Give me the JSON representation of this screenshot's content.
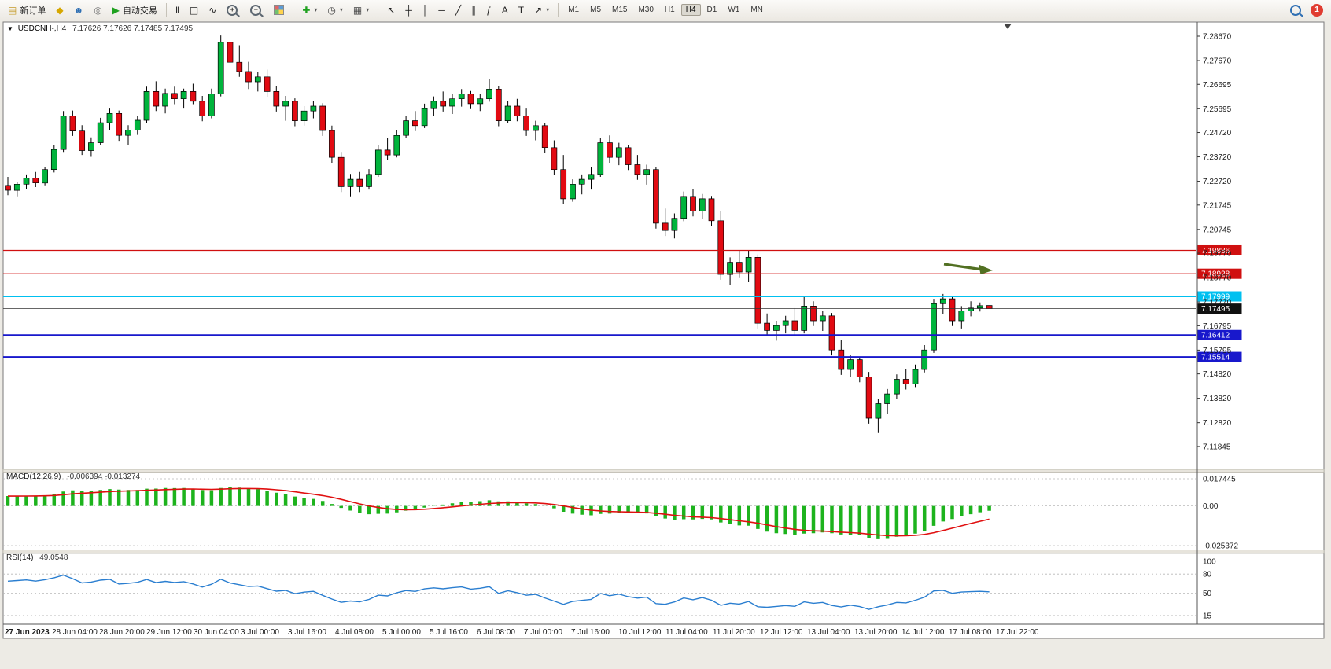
{
  "toolbar": {
    "new_order_label": "新订单",
    "autotrade_label": "自动交易",
    "timeframes": [
      "M1",
      "M5",
      "M15",
      "M30",
      "H1",
      "H4",
      "D1",
      "W1",
      "MN"
    ],
    "active_timeframe": "H4",
    "notification_badge": "1",
    "icons": {
      "title_marker": "▼",
      "new_order": "▤",
      "metaeditor": "◆",
      "profile": "☻",
      "support": "◎",
      "autotrade_play": "▶",
      "bar_chart": "‖",
      "candlestick_chart": "◫",
      "line_chart": "∿",
      "zoom_in_sign": "+",
      "zoom_out_sign": "−",
      "indicators": "✚",
      "periods": "◷",
      "templates": "▦",
      "cursor": "↖",
      "crosshair": "┼",
      "vertical_line": "│",
      "horizontal_line": "─",
      "trendline": "╱",
      "channel": "∥",
      "fibonacci": "ƒ",
      "text": "A",
      "text_label": "T",
      "arrows": "↗",
      "dropdown": "▾"
    }
  },
  "chart": {
    "symbol_title": "USDCNH-,H4",
    "ohlc_quote": "7.17626 7.17626 7.17485 7.17495",
    "hlines": [
      {
        "label": "7.19886",
        "price": 7.19886,
        "color": "#d01010",
        "width": 1.2
      },
      {
        "label": "7.18928",
        "price": 7.18928,
        "color": "#d01010",
        "width": 1.2
      },
      {
        "label": "7.17999",
        "price": 7.17999,
        "color": "#00c0f0",
        "width": 2
      },
      {
        "label": "7.16412",
        "price": 7.16412,
        "color": "#1818cc",
        "width": 2
      },
      {
        "label": "7.15514",
        "price": 7.15514,
        "color": "#1818cc",
        "width": 2
      }
    ],
    "current_price": {
      "label": "7.17495",
      "price": 7.17495,
      "color": "#101010"
    },
    "trend_arrow": {
      "color": "#527022"
    }
  },
  "indicators": {
    "macd": {
      "title": "MACD(12,26,9)",
      "values_text": "-0.006394 -0.013274",
      "fast": 12,
      "slow": 26,
      "signal": 9,
      "axis_labels": [
        "0.017445",
        "0.00",
        "-0.025372"
      ],
      "axis_values": [
        0.017445,
        0,
        -0.025372
      ],
      "histogram_color": "#1db31d",
      "signal_color": "#e01010"
    },
    "rsi": {
      "title": "RSI(14)",
      "value_text": "49.0548",
      "period": 14,
      "axis_labels": [
        "100",
        "80",
        "50",
        "15"
      ],
      "axis_values": [
        100,
        80,
        50,
        15
      ],
      "line_color": "#2a7ed0"
    }
  },
  "chart_data": {
    "type": "candlestick",
    "symbol": "USDCNH-",
    "timeframe": "H4",
    "price_range": [
      7.11845,
      7.2867
    ],
    "up_color": "#00b43c",
    "down_color": "#e20a12",
    "price_axis_ticks": [
      "7.28670",
      "7.27670",
      "7.26695",
      "7.25695",
      "7.24720",
      "7.23720",
      "7.22720",
      "7.21745",
      "7.20745",
      "7.19770",
      "7.18770",
      "7.17770",
      "7.16795",
      "7.15795",
      "7.14820",
      "7.13820",
      "7.12820",
      "7.11845"
    ],
    "time_axis_labels": [
      "27 Jun 2023",
      "28 Jun 04:00",
      "28 Jun 20:00",
      "29 Jun 12:00",
      "30 Jun 04:00",
      "3 Jul 00:00",
      "3 Jul 16:00",
      "4 Jul 08:00",
      "5 Jul 00:00",
      "5 Jul 16:00",
      "6 Jul 08:00",
      "7 Jul 00:00",
      "7 Jul 16:00",
      "10 Jul 12:00",
      "11 Jul 04:00",
      "11 Jul 20:00",
      "12 Jul 12:00",
      "13 Jul 04:00",
      "13 Jul 20:00",
      "14 Jul 12:00",
      "17 Jul 08:00",
      "17 Jul 22:00"
    ],
    "candles": [
      [
        7.2255,
        7.229,
        7.2215,
        7.2235
      ],
      [
        7.2235,
        7.227,
        7.221,
        7.226
      ],
      [
        7.226,
        7.23,
        7.224,
        7.2285
      ],
      [
        7.2285,
        7.231,
        7.2248,
        7.2265
      ],
      [
        7.2265,
        7.2332,
        7.2255,
        7.232
      ],
      [
        7.232,
        7.2422,
        7.2308,
        7.2402
      ],
      [
        7.2402,
        7.256,
        7.2392,
        7.254
      ],
      [
        7.254,
        7.2562,
        7.2458,
        7.2478
      ],
      [
        7.2478,
        7.2502,
        7.238,
        7.2398
      ],
      [
        7.2398,
        7.2452,
        7.2372,
        7.243
      ],
      [
        7.243,
        7.2532,
        7.242,
        7.2512
      ],
      [
        7.2512,
        7.257,
        7.248,
        7.255
      ],
      [
        7.255,
        7.2562,
        7.2438,
        7.246
      ],
      [
        7.246,
        7.2502,
        7.242,
        7.2482
      ],
      [
        7.2482,
        7.254,
        7.2462,
        7.2522
      ],
      [
        7.2522,
        7.266,
        7.2512,
        7.264
      ],
      [
        7.264,
        7.2682,
        7.256,
        7.258
      ],
      [
        7.258,
        7.2652,
        7.255,
        7.2632
      ],
      [
        7.2632,
        7.266,
        7.2588,
        7.261
      ],
      [
        7.261,
        7.2652,
        7.257,
        7.264
      ],
      [
        7.264,
        7.2672,
        7.2588,
        7.26
      ],
      [
        7.26,
        7.2622,
        7.2518,
        7.254
      ],
      [
        7.254,
        7.2652,
        7.253,
        7.263
      ],
      [
        7.263,
        7.287,
        7.262,
        7.2842
      ],
      [
        7.2842,
        7.2866,
        7.2738,
        7.276
      ],
      [
        7.276,
        7.283,
        7.27,
        7.2722
      ],
      [
        7.2722,
        7.2762,
        7.265,
        7.268
      ],
      [
        7.268,
        7.2722,
        7.264,
        7.27
      ],
      [
        7.27,
        7.273,
        7.2618,
        7.264
      ],
      [
        7.264,
        7.2662,
        7.2558,
        7.258
      ],
      [
        7.258,
        7.2622,
        7.252,
        7.26
      ],
      [
        7.26,
        7.2612,
        7.2498,
        7.252
      ],
      [
        7.252,
        7.258,
        7.25,
        7.256
      ],
      [
        7.256,
        7.26,
        7.253,
        7.258
      ],
      [
        7.258,
        7.2592,
        7.2458,
        7.248
      ],
      [
        7.248,
        7.25,
        7.2348,
        7.237
      ],
      [
        7.237,
        7.2392,
        7.2228,
        7.225
      ],
      [
        7.225,
        7.2302,
        7.221,
        7.228
      ],
      [
        7.228,
        7.231,
        7.2228,
        7.225
      ],
      [
        7.225,
        7.2322,
        7.2238,
        7.23
      ],
      [
        7.23,
        7.242,
        7.229,
        7.24
      ],
      [
        7.24,
        7.245,
        7.2358,
        7.238
      ],
      [
        7.238,
        7.248,
        7.237,
        7.246
      ],
      [
        7.246,
        7.254,
        7.245,
        7.252
      ],
      [
        7.252,
        7.256,
        7.2478,
        7.25
      ],
      [
        7.25,
        7.259,
        7.249,
        7.257
      ],
      [
        7.257,
        7.262,
        7.254,
        7.26
      ],
      [
        7.26,
        7.264,
        7.2558,
        7.258
      ],
      [
        7.258,
        7.263,
        7.2548,
        7.261
      ],
      [
        7.261,
        7.265,
        7.2578,
        7.263
      ],
      [
        7.263,
        7.2642,
        7.2568,
        7.259
      ],
      [
        7.259,
        7.263,
        7.256,
        7.261
      ],
      [
        7.261,
        7.269,
        7.2598,
        7.265
      ],
      [
        7.265,
        7.2662,
        7.2498,
        7.252
      ],
      [
        7.252,
        7.26,
        7.251,
        7.258
      ],
      [
        7.258,
        7.261,
        7.2518,
        7.254
      ],
      [
        7.254,
        7.257,
        7.2458,
        7.248
      ],
      [
        7.248,
        7.252,
        7.244,
        7.25
      ],
      [
        7.25,
        7.2512,
        7.2388,
        7.241
      ],
      [
        7.241,
        7.244,
        7.2298,
        7.232
      ],
      [
        7.232,
        7.238,
        7.2178,
        7.22
      ],
      [
        7.22,
        7.228,
        7.2188,
        7.226
      ],
      [
        7.226,
        7.23,
        7.2218,
        7.228
      ],
      [
        7.228,
        7.233,
        7.2238,
        7.23
      ],
      [
        7.23,
        7.245,
        7.229,
        7.243
      ],
      [
        7.243,
        7.246,
        7.2348,
        7.237
      ],
      [
        7.237,
        7.243,
        7.2338,
        7.241
      ],
      [
        7.241,
        7.2422,
        7.2318,
        7.234
      ],
      [
        7.234,
        7.238,
        7.2278,
        7.23
      ],
      [
        7.23,
        7.234,
        7.2258,
        7.232
      ],
      [
        7.232,
        7.2332,
        7.2078,
        7.21
      ],
      [
        7.21,
        7.216,
        7.2048,
        7.207
      ],
      [
        7.207,
        7.214,
        7.2038,
        7.212
      ],
      [
        7.212,
        7.223,
        7.2108,
        7.221
      ],
      [
        7.221,
        7.224,
        7.2128,
        7.215
      ],
      [
        7.215,
        7.222,
        7.2118,
        7.22
      ],
      [
        7.22,
        7.2212,
        7.2088,
        7.211
      ],
      [
        7.211,
        7.215,
        7.1868,
        7.189
      ],
      [
        7.189,
        7.196,
        7.1848,
        7.194
      ],
      [
        7.194,
        7.199,
        7.1878,
        7.19
      ],
      [
        7.19,
        7.1988,
        7.1858,
        7.196
      ],
      [
        7.196,
        7.1972,
        7.1668,
        7.169
      ],
      [
        7.169,
        7.173,
        7.1638,
        7.166
      ],
      [
        7.166,
        7.17,
        7.1618,
        7.168
      ],
      [
        7.168,
        7.172,
        7.1648,
        7.17
      ],
      [
        7.17,
        7.1752,
        7.1638,
        7.166
      ],
      [
        7.166,
        7.18,
        7.1648,
        7.176
      ],
      [
        7.176,
        7.178,
        7.1678,
        7.17
      ],
      [
        7.17,
        7.174,
        7.1658,
        7.172
      ],
      [
        7.172,
        7.1732,
        7.1558,
        7.158
      ],
      [
        7.158,
        7.162,
        7.1478,
        7.15
      ],
      [
        7.15,
        7.156,
        7.1468,
        7.154
      ],
      [
        7.154,
        7.1552,
        7.1448,
        7.147
      ],
      [
        7.147,
        7.149,
        7.1278,
        7.13
      ],
      [
        7.13,
        7.138,
        7.124,
        7.136
      ],
      [
        7.136,
        7.142,
        7.1318,
        7.14
      ],
      [
        7.14,
        7.148,
        7.1378,
        7.146
      ],
      [
        7.146,
        7.15,
        7.1418,
        7.144
      ],
      [
        7.144,
        7.152,
        7.1428,
        7.15
      ],
      [
        7.15,
        7.16,
        7.1488,
        7.158
      ],
      [
        7.158,
        7.179,
        7.1568,
        7.177
      ],
      [
        7.177,
        7.181,
        7.1728,
        7.179
      ],
      [
        7.179,
        7.18,
        7.1678,
        7.17
      ],
      [
        7.17,
        7.176,
        7.1668,
        7.174
      ],
      [
        7.174,
        7.178,
        7.1718,
        7.1752
      ],
      [
        7.1752,
        7.1775,
        7.1738,
        7.1762
      ],
      [
        7.17626,
        7.17626,
        7.17485,
        7.17495
      ]
    ]
  }
}
